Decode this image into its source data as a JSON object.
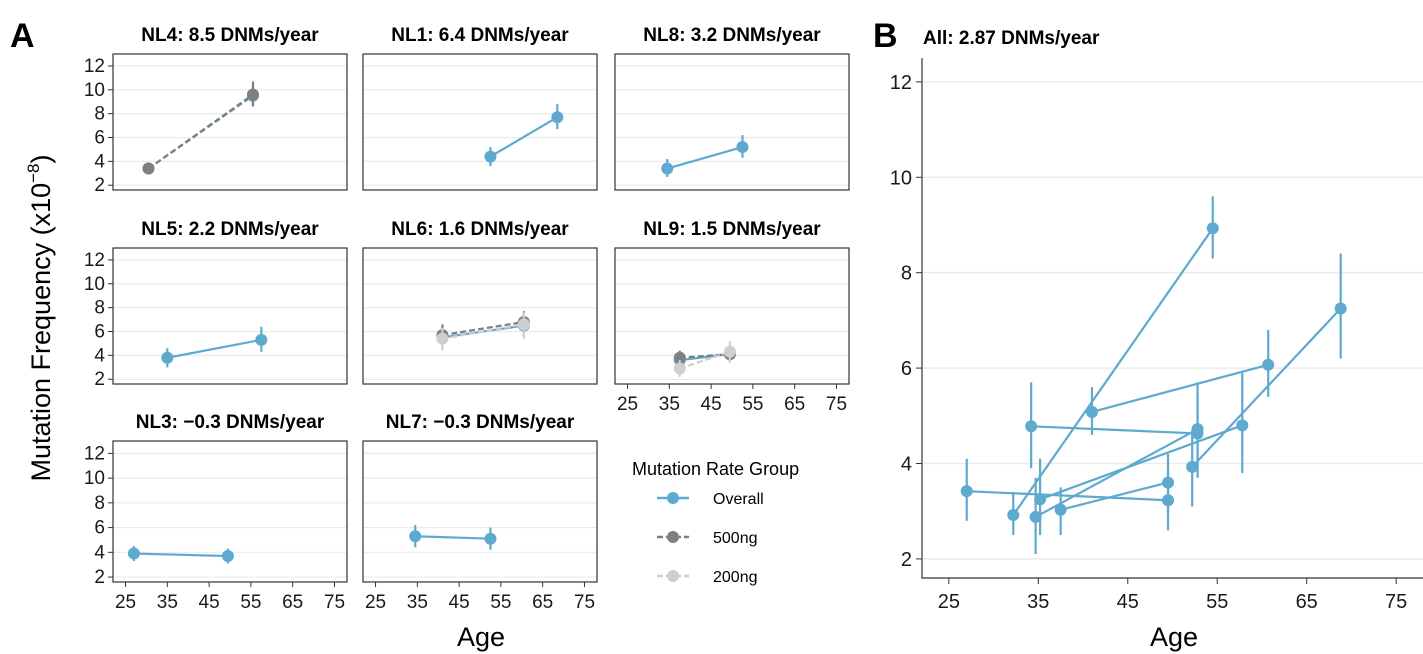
{
  "panel_labels": [
    "A",
    "B"
  ],
  "legend": {
    "title": "Mutation Rate Group",
    "items": [
      {
        "label": "Overall",
        "color": "#5ea9cf"
      },
      {
        "label": "500ng",
        "color": "#7f7f7f"
      },
      {
        "label": "200ng",
        "color": "#cfcfcf"
      }
    ]
  },
  "chart_data": [
    {
      "type": "scatter",
      "panel": "A",
      "xlabel": "Age",
      "ylabel": "Mutation Frequency (x10",
      "ylabel_superscript": "−8",
      "ylabel_close": ")",
      "xlim": [
        22,
        78
      ],
      "ylim": [
        1.6,
        13
      ],
      "xticks": [
        25,
        35,
        45,
        55,
        65,
        75
      ],
      "yticks": [
        2,
        4,
        6,
        8,
        10,
        12
      ],
      "grid": true,
      "facets": [
        {
          "title": "NL4: 8.5 DNMs/year",
          "series": [
            {
              "name": "Overall",
              "color": "#5ea9cf",
              "dashed": true,
              "points": [
                {
                  "x": 30.5,
                  "y": 3.4,
                  "lo": 3.0,
                  "hi": 3.8
                },
                {
                  "x": 55.5,
                  "y": 9.5,
                  "lo": 8.7,
                  "hi": 10.3
                }
              ]
            },
            {
              "name": "500ng",
              "color": "#7f7f7f",
              "dashed": true,
              "points": [
                {
                  "x": 30.5,
                  "y": 3.4,
                  "lo": 2.9,
                  "hi": 3.9
                },
                {
                  "x": 55.5,
                  "y": 9.6,
                  "lo": 8.6,
                  "hi": 10.7
                }
              ]
            }
          ]
        },
        {
          "title": "NL1: 6.4 DNMs/year",
          "series": [
            {
              "name": "Overall",
              "color": "#5ea9cf",
              "dashed": false,
              "points": [
                {
                  "x": 52.5,
                  "y": 4.4,
                  "lo": 3.6,
                  "hi": 5.2
                },
                {
                  "x": 68.5,
                  "y": 7.7,
                  "lo": 6.7,
                  "hi": 8.8
                }
              ]
            }
          ]
        },
        {
          "title": "NL8: 3.2 DNMs/year",
          "series": [
            {
              "name": "Overall",
              "color": "#5ea9cf",
              "dashed": false,
              "points": [
                {
                  "x": 34.5,
                  "y": 3.4,
                  "lo": 2.7,
                  "hi": 4.2
                },
                {
                  "x": 52.5,
                  "y": 5.2,
                  "lo": 4.3,
                  "hi": 6.2
                }
              ]
            }
          ]
        },
        {
          "title": "NL5: 2.2 DNMs/year",
          "series": [
            {
              "name": "Overall",
              "color": "#5ea9cf",
              "dashed": false,
              "points": [
                {
                  "x": 35.0,
                  "y": 3.8,
                  "lo": 3.0,
                  "hi": 4.6
                },
                {
                  "x": 57.5,
                  "y": 5.3,
                  "lo": 4.3,
                  "hi": 6.4
                }
              ]
            }
          ]
        },
        {
          "title": "NL6: 1.6 DNMs/year",
          "series": [
            {
              "name": "Overall",
              "color": "#5ea9cf",
              "dashed": false,
              "points": [
                {
                  "x": 41.0,
                  "y": 5.5,
                  "lo": 4.9,
                  "hi": 6.2
                },
                {
                  "x": 60.5,
                  "y": 6.5,
                  "lo": 5.6,
                  "hi": 7.3
                }
              ]
            },
            {
              "name": "500ng",
              "color": "#7f7f7f",
              "dashed": true,
              "points": [
                {
                  "x": 41.0,
                  "y": 5.7,
                  "lo": 4.8,
                  "hi": 6.6
                },
                {
                  "x": 60.5,
                  "y": 6.8,
                  "lo": 5.9,
                  "hi": 7.7
                }
              ]
            },
            {
              "name": "200ng",
              "color": "#cfcfcf",
              "dashed": true,
              "points": [
                {
                  "x": 41.0,
                  "y": 5.4,
                  "lo": 4.4,
                  "hi": 6.3
                },
                {
                  "x": 60.5,
                  "y": 6.6,
                  "lo": 5.4,
                  "hi": 7.6
                }
              ]
            }
          ]
        },
        {
          "title": "NL9: 1.5 DNMs/year",
          "series": [
            {
              "name": "Overall",
              "color": "#5ea9cf",
              "dashed": false,
              "points": [
                {
                  "x": 37.5,
                  "y": 3.6,
                  "lo": 3.0,
                  "hi": 4.2
                },
                {
                  "x": 49.5,
                  "y": 4.1,
                  "lo": 3.4,
                  "hi": 4.8
                }
              ]
            },
            {
              "name": "500ng",
              "color": "#7f7f7f",
              "dashed": true,
              "points": [
                {
                  "x": 37.5,
                  "y": 3.8,
                  "lo": 3.1,
                  "hi": 4.4
                },
                {
                  "x": 49.5,
                  "y": 4.1,
                  "lo": 3.4,
                  "hi": 4.8
                }
              ]
            },
            {
              "name": "200ng",
              "color": "#cfcfcf",
              "dashed": true,
              "points": [
                {
                  "x": 37.5,
                  "y": 2.9,
                  "lo": 2.2,
                  "hi": 3.6
                },
                {
                  "x": 49.5,
                  "y": 4.3,
                  "lo": 3.4,
                  "hi": 5.2
                }
              ]
            }
          ]
        },
        {
          "title": "NL3: −0.3 DNMs/year",
          "series": [
            {
              "name": "Overall",
              "color": "#5ea9cf",
              "dashed": false,
              "points": [
                {
                  "x": 27.0,
                  "y": 3.9,
                  "lo": 3.3,
                  "hi": 4.5
                },
                {
                  "x": 49.5,
                  "y": 3.7,
                  "lo": 3.1,
                  "hi": 4.3
                }
              ]
            }
          ]
        },
        {
          "title": "NL7: −0.3 DNMs/year",
          "series": [
            {
              "name": "Overall",
              "color": "#5ea9cf",
              "dashed": false,
              "points": [
                {
                  "x": 34.5,
                  "y": 5.3,
                  "lo": 4.4,
                  "hi": 6.2
                },
                {
                  "x": 52.5,
                  "y": 5.1,
                  "lo": 4.2,
                  "hi": 6.0
                }
              ]
            }
          ]
        }
      ]
    },
    {
      "type": "scatter",
      "panel": "B",
      "title": "All: 2.87 DNMs/year",
      "xlabel": "Age",
      "xlim": [
        22,
        78
      ],
      "ylim": [
        1.6,
        12.5
      ],
      "xticks": [
        25,
        35,
        45,
        55,
        65,
        75
      ],
      "yticks": [
        2,
        4,
        6,
        8,
        10,
        12
      ],
      "grid": true,
      "series": [
        {
          "name": "NL3",
          "points": [
            {
              "x": 27.0,
              "y": 3.42,
              "lo": 2.8,
              "hi": 4.1
            },
            {
              "x": 49.5,
              "y": 3.23,
              "lo": 2.6,
              "hi": 3.9
            }
          ]
        },
        {
          "name": "NL4",
          "points": [
            {
              "x": 32.2,
              "y": 2.92,
              "lo": 2.5,
              "hi": 3.4
            },
            {
              "x": 54.5,
              "y": 8.93,
              "lo": 8.3,
              "hi": 9.6
            }
          ]
        },
        {
          "name": "NL5",
          "points": [
            {
              "x": 35.2,
              "y": 3.25,
              "lo": 2.5,
              "hi": 4.1
            },
            {
              "x": 57.8,
              "y": 4.8,
              "lo": 3.8,
              "hi": 5.9
            }
          ]
        },
        {
          "name": "NL9",
          "points": [
            {
              "x": 37.5,
              "y": 3.03,
              "lo": 2.5,
              "hi": 3.5
            },
            {
              "x": 49.5,
              "y": 3.6,
              "lo": 3.0,
              "hi": 4.2
            }
          ]
        },
        {
          "name": "NL7",
          "points": [
            {
              "x": 34.2,
              "y": 4.78,
              "lo": 3.9,
              "hi": 5.7
            },
            {
              "x": 52.8,
              "y": 4.63,
              "lo": 3.7,
              "hi": 5.5
            }
          ]
        },
        {
          "name": "NL6",
          "points": [
            {
              "x": 41.0,
              "y": 5.08,
              "lo": 4.6,
              "hi": 5.6
            },
            {
              "x": 60.7,
              "y": 6.07,
              "lo": 5.4,
              "hi": 6.8
            }
          ]
        },
        {
          "name": "NL8",
          "points": [
            {
              "x": 34.7,
              "y": 2.88,
              "lo": 2.1,
              "hi": 3.7
            },
            {
              "x": 52.8,
              "y": 4.72,
              "lo": 3.8,
              "hi": 5.7
            }
          ]
        },
        {
          "name": "NL1",
          "points": [
            {
              "x": 52.2,
              "y": 3.93,
              "lo": 3.1,
              "hi": 4.7
            },
            {
              "x": 68.8,
              "y": 7.25,
              "lo": 6.2,
              "hi": 8.4
            }
          ]
        }
      ]
    }
  ]
}
